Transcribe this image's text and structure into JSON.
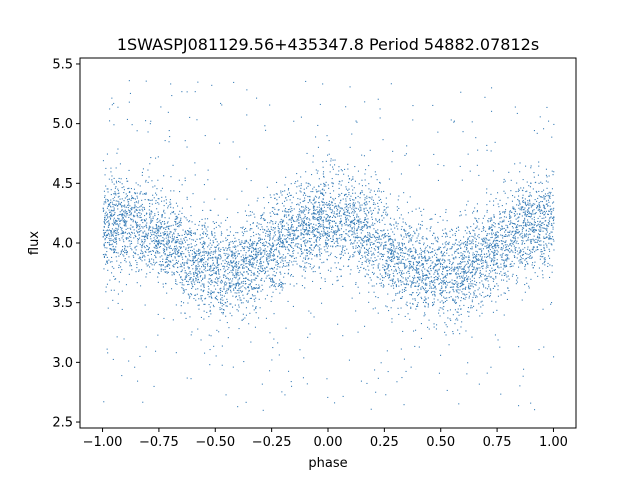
{
  "chart_data": {
    "type": "scatter",
    "title": "1SWASPJ081129.56+435347.8 Period 54882.07812s",
    "xlabel": "phase",
    "ylabel": "flux",
    "xlim": [
      -1.1,
      1.1
    ],
    "ylim": [
      2.45,
      5.55
    ],
    "x_ticks": [
      -1.0,
      -0.75,
      -0.5,
      -0.25,
      0.0,
      0.25,
      0.5,
      0.75,
      1.0
    ],
    "x_tick_labels": [
      "−1.00",
      "−0.75",
      "−0.50",
      "−0.25",
      "0.00",
      "0.25",
      "0.50",
      "0.75",
      "1.00"
    ],
    "y_ticks": [
      2.5,
      3.0,
      3.5,
      4.0,
      4.5,
      5.0,
      5.5
    ],
    "y_tick_labels": [
      "2.5",
      "3.0",
      "3.5",
      "4.0",
      "4.5",
      "5.0",
      "5.5"
    ],
    "grid": false,
    "marker_color": "#3b7fb8",
    "series": [
      {
        "x": [
          -1.0,
          -0.9,
          -0.8,
          -0.7,
          -0.6,
          -0.5,
          -0.45,
          -0.4,
          -0.3,
          -0.2,
          -0.1,
          0.0,
          0.05,
          0.1,
          0.2,
          0.3,
          0.4,
          0.5,
          0.55,
          0.6,
          0.7,
          0.8,
          0.9,
          1.0
        ],
        "y": [
          4.15,
          4.17,
          4.12,
          4.0,
          3.87,
          3.76,
          3.74,
          3.76,
          3.87,
          4.02,
          4.14,
          4.2,
          4.2,
          4.17,
          4.05,
          3.9,
          3.78,
          3.74,
          3.74,
          3.78,
          3.9,
          4.05,
          4.15,
          4.18
        ],
        "spread": 0.2,
        "x_min": -1.0,
        "x_max": 1.0,
        "y_min": 2.6,
        "y_max": 5.4
      }
    ]
  }
}
